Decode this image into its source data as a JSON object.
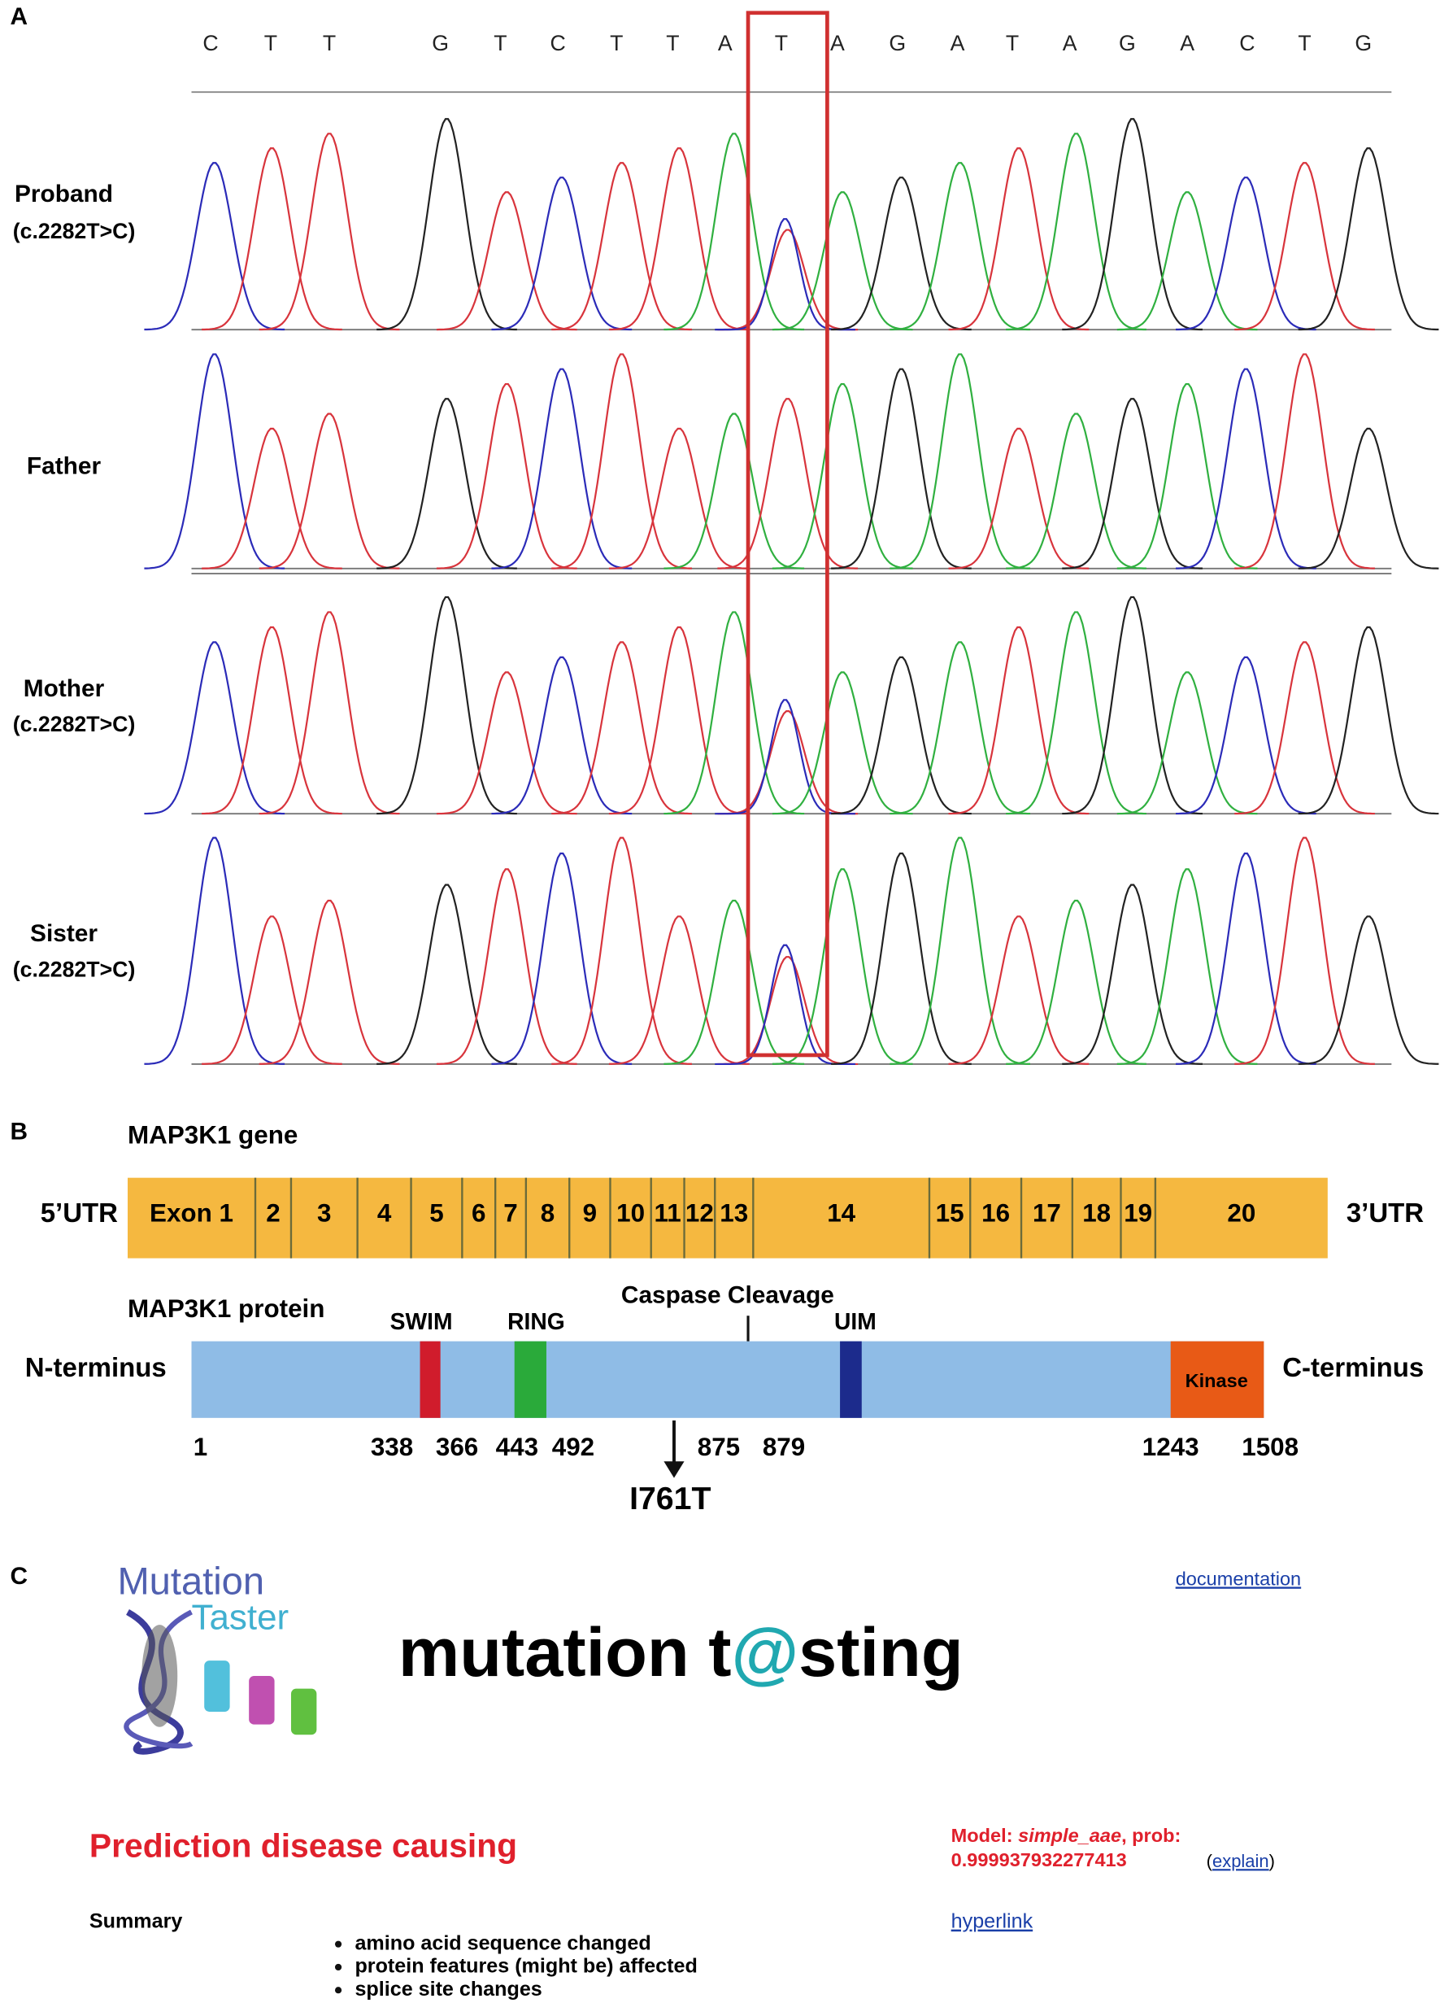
{
  "panel_a": {
    "label": "A",
    "sequence": [
      {
        "base": "C",
        "color": "#2b2bb8"
      },
      {
        "base": "T",
        "color": "#d8343c"
      },
      {
        "base": "T",
        "color": "#d8343c"
      },
      {
        "base": "G",
        "color": "#222222"
      },
      {
        "base": "T",
        "color": "#d8343c"
      },
      {
        "base": "C",
        "color": "#2b2bb8"
      },
      {
        "base": "T",
        "color": "#d8343c"
      },
      {
        "base": "T",
        "color": "#d8343c"
      },
      {
        "base": "A",
        "color": "#30b040"
      },
      {
        "base": "T",
        "color": "#d8343c"
      },
      {
        "base": "A",
        "color": "#30b040"
      },
      {
        "base": "G",
        "color": "#222222"
      },
      {
        "base": "A",
        "color": "#30b040"
      },
      {
        "base": "T",
        "color": "#d8343c"
      },
      {
        "base": "A",
        "color": "#30b040"
      },
      {
        "base": "G",
        "color": "#222222"
      },
      {
        "base": "A",
        "color": "#30b040"
      },
      {
        "base": "C",
        "color": "#2b2bb8"
      },
      {
        "base": "T",
        "color": "#d8343c"
      },
      {
        "base": "G",
        "color": "#222222"
      }
    ],
    "rows": [
      {
        "name": "Proband",
        "genotype": "(c.2282T>C)"
      },
      {
        "name": "Father"
      },
      {
        "name": "Mother",
        "genotype": "(c.2282T>C)"
      },
      {
        "name": "Sister",
        "genotype": "(c.2282T>C)"
      }
    ]
  },
  "panel_b": {
    "label": "B",
    "gene_title": "MAP3K1 gene",
    "utr5": "5’UTR",
    "utr3": "3’UTR",
    "exons": [
      "Exon 1",
      "2",
      "3",
      "4",
      "5",
      "6",
      "7",
      "8",
      "9",
      "10",
      "11",
      "12",
      "13",
      "14",
      "15",
      "16",
      "17",
      "18",
      "19",
      "20"
    ],
    "protein_title": "MAP3K1 protein",
    "n_terminus": "N-terminus",
    "c_terminus": "C-terminus",
    "domains": [
      {
        "name": "SWIM",
        "color": "#d01c2c"
      },
      {
        "name": "RING",
        "color": "#2aaa3a"
      },
      {
        "name": "UIM",
        "color": "#1c2b8c"
      },
      {
        "name": "Kinase",
        "color": "#e85a16"
      }
    ],
    "cleavage": "Caspase Cleavage",
    "positions": [
      "1",
      "338",
      "366",
      "443",
      "492",
      "875",
      "879",
      "1243",
      "1508"
    ],
    "mutation": "I761T"
  },
  "panel_c": {
    "label": "C",
    "logo": [
      "Mutation",
      "Taster"
    ],
    "title": [
      "mutation t",
      "@",
      "sting"
    ],
    "documentation": "documentation",
    "prediction": "Prediction disease causing",
    "model": {
      "label": "Model:",
      "name": "simple_aae",
      "prob_label": ", prob:",
      "prob": "0.999937932277413"
    },
    "explain": {
      "before": "(",
      "link": "explain",
      "after": ")"
    },
    "summary_label": "Summary",
    "summary": [
      "amino acid sequence changed",
      "protein features (might be) affected",
      "splice site changes"
    ],
    "hyperlink": "hyperlink"
  }
}
